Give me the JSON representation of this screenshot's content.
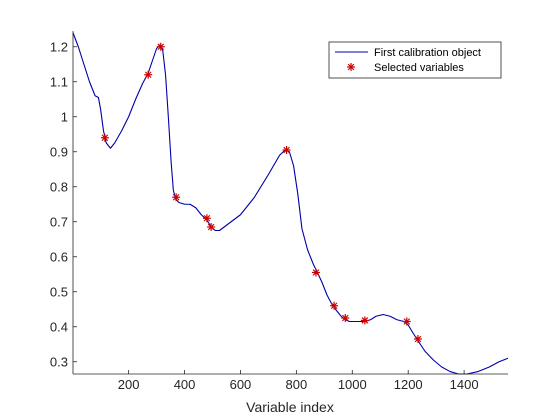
{
  "chart_data": {
    "type": "line",
    "title": "",
    "xlabel": "Variable index",
    "ylabel": "",
    "xlim": [
      1,
      1557
    ],
    "ylim": [
      0.265,
      1.245
    ],
    "xticks": [
      200,
      400,
      600,
      800,
      1000,
      1200,
      1400
    ],
    "yticks": [
      0.3,
      0.4,
      0.5,
      0.6,
      0.7,
      0.8,
      0.9,
      1,
      1.1,
      1.2
    ],
    "grid": false,
    "legend_position": "top-right",
    "series": [
      {
        "name": "First calibration object",
        "kind": "line",
        "color": "#0000aa",
        "points": [
          [
            1,
            1.24
          ],
          [
            20,
            1.2
          ],
          [
            40,
            1.15
          ],
          [
            60,
            1.1
          ],
          [
            80,
            1.06
          ],
          [
            92,
            1.055
          ],
          [
            100,
            1.02
          ],
          [
            110,
            0.96
          ],
          [
            120,
            0.925
          ],
          [
            135,
            0.91
          ],
          [
            150,
            0.925
          ],
          [
            175,
            0.96
          ],
          [
            200,
            1.0
          ],
          [
            225,
            1.05
          ],
          [
            250,
            1.095
          ],
          [
            270,
            1.125
          ],
          [
            285,
            1.16
          ],
          [
            300,
            1.195
          ],
          [
            312,
            1.205
          ],
          [
            322,
            1.19
          ],
          [
            332,
            1.12
          ],
          [
            342,
            1.0
          ],
          [
            352,
            0.87
          ],
          [
            360,
            0.79
          ],
          [
            368,
            0.765
          ],
          [
            380,
            0.755
          ],
          [
            400,
            0.75
          ],
          [
            420,
            0.75
          ],
          [
            440,
            0.74
          ],
          [
            460,
            0.72
          ],
          [
            480,
            0.705
          ],
          [
            495,
            0.685
          ],
          [
            510,
            0.675
          ],
          [
            525,
            0.675
          ],
          [
            550,
            0.69
          ],
          [
            600,
            0.72
          ],
          [
            650,
            0.77
          ],
          [
            700,
            0.835
          ],
          [
            740,
            0.89
          ],
          [
            760,
            0.905
          ],
          [
            775,
            0.9
          ],
          [
            790,
            0.86
          ],
          [
            805,
            0.78
          ],
          [
            820,
            0.68
          ],
          [
            840,
            0.62
          ],
          [
            860,
            0.58
          ],
          [
            875,
            0.555
          ],
          [
            890,
            0.53
          ],
          [
            910,
            0.49
          ],
          [
            930,
            0.46
          ],
          [
            945,
            0.445
          ],
          [
            960,
            0.43
          ],
          [
            975,
            0.42
          ],
          [
            990,
            0.415
          ],
          [
            1010,
            0.415
          ],
          [
            1030,
            0.415
          ],
          [
            1045,
            0.415
          ],
          [
            1065,
            0.42
          ],
          [
            1085,
            0.43
          ],
          [
            1110,
            0.435
          ],
          [
            1135,
            0.43
          ],
          [
            1160,
            0.42
          ],
          [
            1185,
            0.415
          ],
          [
            1200,
            0.405
          ],
          [
            1215,
            0.385
          ],
          [
            1235,
            0.36
          ],
          [
            1260,
            0.33
          ],
          [
            1290,
            0.305
          ],
          [
            1320,
            0.285
          ],
          [
            1350,
            0.272
          ],
          [
            1380,
            0.265
          ],
          [
            1410,
            0.265
          ],
          [
            1450,
            0.272
          ],
          [
            1490,
            0.285
          ],
          [
            1525,
            0.3
          ],
          [
            1557,
            0.31
          ]
        ]
      },
      {
        "name": "Selected variables",
        "kind": "marker",
        "marker": "*",
        "color": "#cc0000",
        "points": [
          [
            115,
            0.94
          ],
          [
            270,
            1.12
          ],
          [
            315,
            1.2
          ],
          [
            370,
            0.77
          ],
          [
            480,
            0.71
          ],
          [
            495,
            0.685
          ],
          [
            765,
            0.905
          ],
          [
            870,
            0.555
          ],
          [
            935,
            0.46
          ],
          [
            975,
            0.425
          ],
          [
            1045,
            0.418
          ],
          [
            1195,
            0.415
          ],
          [
            1235,
            0.365
          ]
        ]
      }
    ]
  }
}
